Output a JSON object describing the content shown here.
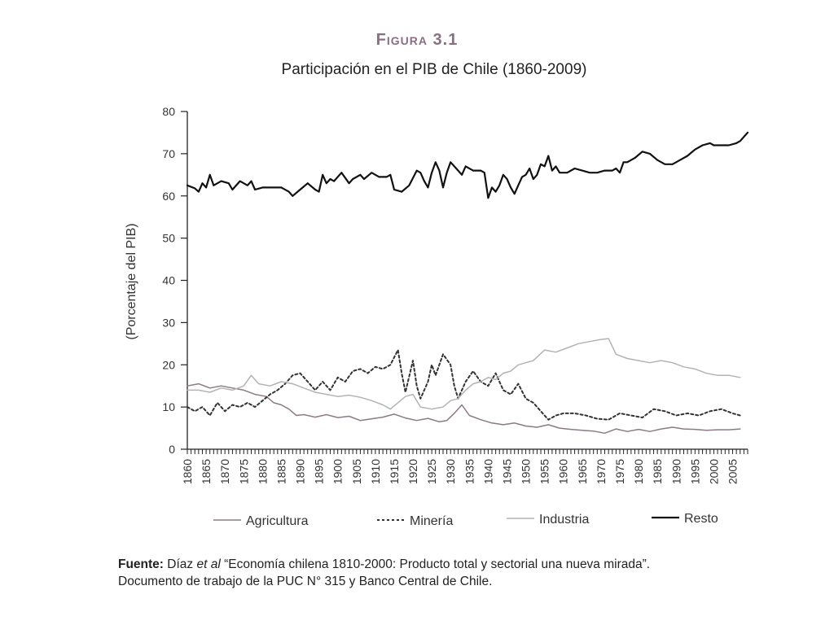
{
  "figure_label": "Figura 3.1",
  "source": {
    "label": "Fuente:",
    "line1_a": "Díaz ",
    "line1_em": "et al",
    "line1_b": " “Economía chilena 1810-2000: Producto total y sectorial una nueva mirada”.",
    "line2": "Documento de trabajo de la PUC N° 315 y Banco Central de Chile."
  },
  "chart_data": {
    "type": "line",
    "title": "Participación en el PIB de Chile (1860-2009)",
    "xlabel": "",
    "ylabel": "(Porcentaje del PIB)",
    "xlim": [
      1860,
      2009
    ],
    "ylim": [
      0,
      80
    ],
    "yticks": [
      0,
      10,
      20,
      30,
      40,
      50,
      60,
      70,
      80
    ],
    "xticks": [
      1860,
      1865,
      1870,
      1875,
      1880,
      1885,
      1890,
      1895,
      1900,
      1905,
      1910,
      1915,
      1920,
      1925,
      1930,
      1935,
      1940,
      1945,
      1950,
      1955,
      1960,
      1965,
      1970,
      1975,
      1980,
      1985,
      1990,
      1995,
      2000,
      2005
    ],
    "grid": false,
    "legend_position": "bottom",
    "series": [
      {
        "name": "Agricultura",
        "color": "#8c7a86",
        "style": "solid",
        "points": [
          [
            1860,
            15
          ],
          [
            1863,
            15.5
          ],
          [
            1866,
            14.5
          ],
          [
            1869,
            15
          ],
          [
            1872,
            14.5
          ],
          [
            1875,
            14
          ],
          [
            1878,
            13
          ],
          [
            1881,
            12.5
          ],
          [
            1883,
            11
          ],
          [
            1885,
            10.5
          ],
          [
            1887,
            9.5
          ],
          [
            1889,
            8
          ],
          [
            1891,
            8.2
          ],
          [
            1894,
            7.6
          ],
          [
            1897,
            8.2
          ],
          [
            1900,
            7.5
          ],
          [
            1903,
            7.8
          ],
          [
            1906,
            6.8
          ],
          [
            1909,
            7.2
          ],
          [
            1912,
            7.6
          ],
          [
            1915,
            8.3
          ],
          [
            1918,
            7.4
          ],
          [
            1921,
            6.8
          ],
          [
            1924,
            7.3
          ],
          [
            1927,
            6.5
          ],
          [
            1929,
            6.8
          ],
          [
            1931,
            8.5
          ],
          [
            1933,
            10.5
          ],
          [
            1935,
            8
          ],
          [
            1938,
            7
          ],
          [
            1941,
            6.2
          ],
          [
            1944,
            5.8
          ],
          [
            1947,
            6.2
          ],
          [
            1950,
            5.5
          ],
          [
            1953,
            5.2
          ],
          [
            1956,
            5.8
          ],
          [
            1959,
            5
          ],
          [
            1962,
            4.7
          ],
          [
            1965,
            4.5
          ],
          [
            1968,
            4.3
          ],
          [
            1971,
            3.8
          ],
          [
            1974,
            4.8
          ],
          [
            1977,
            4.2
          ],
          [
            1980,
            4.7
          ],
          [
            1983,
            4.2
          ],
          [
            1986,
            4.8
          ],
          [
            1989,
            5.2
          ],
          [
            1992,
            4.8
          ],
          [
            1995,
            4.7
          ],
          [
            1998,
            4.5
          ],
          [
            2001,
            4.6
          ],
          [
            2004,
            4.6
          ],
          [
            2007,
            4.8
          ]
        ]
      },
      {
        "name": "Minería",
        "color": "#333333",
        "style": "dotted",
        "points": [
          [
            1860,
            10
          ],
          [
            1862,
            9
          ],
          [
            1864,
            10
          ],
          [
            1866,
            8
          ],
          [
            1868,
            11
          ],
          [
            1870,
            9
          ],
          [
            1872,
            10.5
          ],
          [
            1874,
            10
          ],
          [
            1876,
            11
          ],
          [
            1878,
            10
          ],
          [
            1880,
            11.5
          ],
          [
            1882,
            13
          ],
          [
            1884,
            14
          ],
          [
            1886,
            15.5
          ],
          [
            1888,
            17.5
          ],
          [
            1890,
            18
          ],
          [
            1892,
            16
          ],
          [
            1894,
            14
          ],
          [
            1896,
            16
          ],
          [
            1898,
            14
          ],
          [
            1900,
            17
          ],
          [
            1902,
            16
          ],
          [
            1904,
            18.5
          ],
          [
            1906,
            19
          ],
          [
            1908,
            18
          ],
          [
            1910,
            19.5
          ],
          [
            1912,
            19
          ],
          [
            1914,
            20
          ],
          [
            1916,
            23.5
          ],
          [
            1917,
            18
          ],
          [
            1918,
            13.5
          ],
          [
            1920,
            21
          ],
          [
            1921,
            15
          ],
          [
            1922,
            12
          ],
          [
            1924,
            16
          ],
          [
            1925,
            20
          ],
          [
            1926,
            17.5
          ],
          [
            1928,
            22.5
          ],
          [
            1930,
            20
          ],
          [
            1931,
            15
          ],
          [
            1932,
            12
          ],
          [
            1934,
            16
          ],
          [
            1936,
            18.5
          ],
          [
            1938,
            16
          ],
          [
            1940,
            15
          ],
          [
            1942,
            18
          ],
          [
            1944,
            14
          ],
          [
            1946,
            13
          ],
          [
            1948,
            15.5
          ],
          [
            1950,
            12
          ],
          [
            1952,
            11
          ],
          [
            1954,
            9
          ],
          [
            1956,
            7
          ],
          [
            1958,
            8
          ],
          [
            1960,
            8.5
          ],
          [
            1963,
            8.5
          ],
          [
            1966,
            8
          ],
          [
            1969,
            7.2
          ],
          [
            1972,
            7
          ],
          [
            1975,
            8.5
          ],
          [
            1978,
            8
          ],
          [
            1981,
            7.5
          ],
          [
            1984,
            9.5
          ],
          [
            1987,
            9
          ],
          [
            1990,
            8
          ],
          [
            1993,
            8.5
          ],
          [
            1996,
            8
          ],
          [
            1999,
            9
          ],
          [
            2002,
            9.5
          ],
          [
            2005,
            8.5
          ],
          [
            2007,
            8
          ]
        ]
      },
      {
        "name": "Industria",
        "color": "#b3b3b3",
        "style": "solid",
        "points": [
          [
            1860,
            14
          ],
          [
            1863,
            14
          ],
          [
            1866,
            13.5
          ],
          [
            1869,
            14.5
          ],
          [
            1872,
            14
          ],
          [
            1875,
            15
          ],
          [
            1877,
            17.5
          ],
          [
            1879,
            15.5
          ],
          [
            1882,
            15
          ],
          [
            1885,
            16
          ],
          [
            1888,
            15.5
          ],
          [
            1891,
            14.5
          ],
          [
            1894,
            13.5
          ],
          [
            1897,
            13
          ],
          [
            1900,
            12.5
          ],
          [
            1903,
            12.8
          ],
          [
            1906,
            12.3
          ],
          [
            1909,
            11.5
          ],
          [
            1912,
            10.5
          ],
          [
            1914,
            9.5
          ],
          [
            1916,
            11
          ],
          [
            1918,
            12.5
          ],
          [
            1920,
            13
          ],
          [
            1922,
            10
          ],
          [
            1925,
            9.5
          ],
          [
            1928,
            10
          ],
          [
            1930,
            11.5
          ],
          [
            1932,
            12
          ],
          [
            1934,
            14
          ],
          [
            1936,
            15.5
          ],
          [
            1938,
            16
          ],
          [
            1940,
            17
          ],
          [
            1942,
            16.5
          ],
          [
            1944,
            18
          ],
          [
            1946,
            18.5
          ],
          [
            1948,
            20
          ],
          [
            1950,
            20.5
          ],
          [
            1952,
            21
          ],
          [
            1955,
            23.5
          ],
          [
            1958,
            23
          ],
          [
            1961,
            24
          ],
          [
            1964,
            25
          ],
          [
            1967,
            25.5
          ],
          [
            1970,
            26
          ],
          [
            1972,
            26.2
          ],
          [
            1974,
            22.5
          ],
          [
            1977,
            21.5
          ],
          [
            1980,
            21
          ],
          [
            1983,
            20.5
          ],
          [
            1986,
            21
          ],
          [
            1989,
            20.5
          ],
          [
            1992,
            19.5
          ],
          [
            1995,
            19
          ],
          [
            1998,
            18
          ],
          [
            2001,
            17.5
          ],
          [
            2004,
            17.5
          ],
          [
            2007,
            17
          ]
        ]
      },
      {
        "name": "Resto",
        "color": "#111111",
        "style": "solid",
        "points": [
          [
            1860,
            62.5
          ],
          [
            1862,
            61.8
          ],
          [
            1863,
            61
          ],
          [
            1864,
            63
          ],
          [
            1865,
            62
          ],
          [
            1866,
            65
          ],
          [
            1867,
            62.5
          ],
          [
            1869,
            63.5
          ],
          [
            1871,
            63
          ],
          [
            1872,
            61.5
          ],
          [
            1874,
            63.5
          ],
          [
            1876,
            62.5
          ],
          [
            1877,
            63.5
          ],
          [
            1878,
            61.5
          ],
          [
            1880,
            62
          ],
          [
            1883,
            62
          ],
          [
            1885,
            62
          ],
          [
            1887,
            61
          ],
          [
            1888,
            60
          ],
          [
            1890,
            61.5
          ],
          [
            1892,
            63
          ],
          [
            1894,
            61.5
          ],
          [
            1895,
            61
          ],
          [
            1896,
            65
          ],
          [
            1897,
            63
          ],
          [
            1898,
            64
          ],
          [
            1899,
            63.5
          ],
          [
            1901,
            65.5
          ],
          [
            1903,
            63
          ],
          [
            1904,
            64
          ],
          [
            1906,
            65
          ],
          [
            1907,
            64
          ],
          [
            1909,
            65.5
          ],
          [
            1911,
            64.5
          ],
          [
            1913,
            64.5
          ],
          [
            1914,
            65
          ],
          [
            1915,
            61.5
          ],
          [
            1917,
            61
          ],
          [
            1919,
            62.5
          ],
          [
            1921,
            66
          ],
          [
            1922,
            65.5
          ],
          [
            1923,
            63.5
          ],
          [
            1924,
            62
          ],
          [
            1925,
            65.5
          ],
          [
            1926,
            68
          ],
          [
            1927,
            66
          ],
          [
            1928,
            62
          ],
          [
            1929,
            65.5
          ],
          [
            1930,
            68
          ],
          [
            1931,
            67
          ],
          [
            1932,
            66
          ],
          [
            1933,
            65
          ],
          [
            1934,
            67
          ],
          [
            1936,
            66
          ],
          [
            1938,
            66
          ],
          [
            1939,
            65.5
          ],
          [
            1940,
            59.5
          ],
          [
            1941,
            62
          ],
          [
            1942,
            61
          ],
          [
            1943,
            62.5
          ],
          [
            1944,
            65
          ],
          [
            1945,
            64
          ],
          [
            1946,
            62
          ],
          [
            1947,
            60.5
          ],
          [
            1948,
            62.5
          ],
          [
            1949,
            64.5
          ],
          [
            1950,
            65
          ],
          [
            1951,
            66.5
          ],
          [
            1952,
            64
          ],
          [
            1953,
            65
          ],
          [
            1954,
            67.5
          ],
          [
            1955,
            67
          ],
          [
            1956,
            69.5
          ],
          [
            1957,
            66
          ],
          [
            1958,
            67
          ],
          [
            1959,
            65.5
          ],
          [
            1961,
            65.5
          ],
          [
            1963,
            66.5
          ],
          [
            1965,
            66
          ],
          [
            1967,
            65.5
          ],
          [
            1969,
            65.5
          ],
          [
            1971,
            66
          ],
          [
            1973,
            66
          ],
          [
            1974,
            66.5
          ],
          [
            1975,
            65.5
          ],
          [
            1976,
            68
          ],
          [
            1977,
            68
          ],
          [
            1979,
            69
          ],
          [
            1981,
            70.5
          ],
          [
            1983,
            70
          ],
          [
            1985,
            68.5
          ],
          [
            1987,
            67.5
          ],
          [
            1989,
            67.5
          ],
          [
            1991,
            68.5
          ],
          [
            1993,
            69.5
          ],
          [
            1995,
            71
          ],
          [
            1997,
            72
          ],
          [
            1999,
            72.5
          ],
          [
            2000,
            72
          ],
          [
            2002,
            72
          ],
          [
            2004,
            72
          ],
          [
            2006,
            72.5
          ],
          [
            2007,
            73
          ],
          [
            2009,
            75
          ]
        ]
      }
    ]
  }
}
